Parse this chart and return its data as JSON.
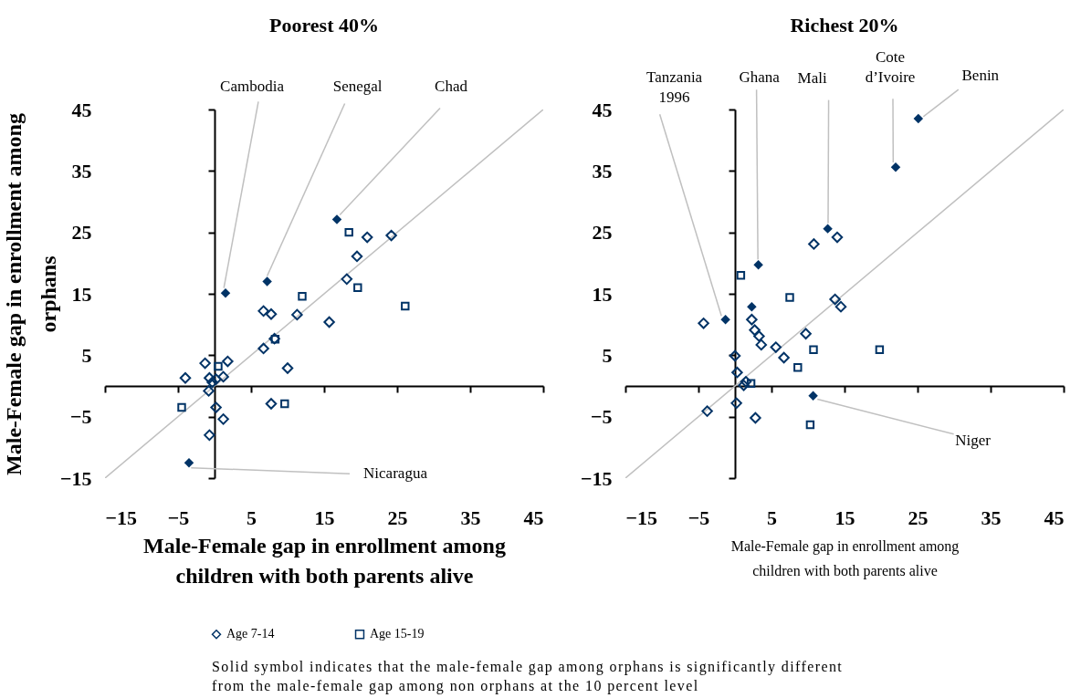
{
  "chart_data": [
    {
      "type": "scatter",
      "title": "Poorest 40%",
      "xlabel": "Male-Female gap in enrollment among children with both parents alive",
      "ylabel": "Male-Female gap in enrollment among orphans",
      "xlim": [
        -15,
        45
      ],
      "ylim": [
        -15,
        45
      ],
      "xticks": [
        -15,
        -5,
        5,
        15,
        25,
        35,
        45
      ],
      "yticks": [
        -15,
        -5,
        5,
        15,
        25,
        35,
        45
      ],
      "legend": "bottom",
      "series": [
        {
          "type": "line",
          "color": "#c0c0c0",
          "marker": "none",
          "x": [
            -15,
            45
          ],
          "values": [
            -15,
            45
          ]
        },
        {
          "type": "scatter",
          "name": "Age 7-14",
          "color": "#003366",
          "marker": "diamond",
          "x": [
            20.9,
            24.2,
            19.5,
            18.1,
            6.7,
            7.75,
            11.3,
            15.7,
            8.2,
            6.7,
            10.0,
            -1.3,
            1.8,
            -4.0,
            -0.7,
            0.2,
            1.2,
            -0.3,
            -0.8,
            0.2,
            1.2,
            -0.7,
            7.75
          ],
          "values": [
            24.2,
            24.5,
            21.1,
            17.4,
            12.2,
            11.7,
            11.6,
            10.4,
            7.7,
            6.1,
            2.9,
            3.7,
            4.0,
            1.3,
            1.3,
            1.1,
            1.5,
            0.6,
            -0.8,
            -3.5,
            -5.4,
            -8.0,
            -2.9
          ]
        },
        {
          "type": "scatter",
          "name": "Age 15-19",
          "color": "#003366",
          "marker": "square",
          "x": [
            18.4,
            19.6,
            12.0,
            26.1,
            0.5,
            -4.5,
            9.6,
            8.3
          ],
          "values": [
            25.0,
            16.0,
            14.6,
            13.0,
            3.2,
            -3.5,
            -2.9,
            7.6
          ]
        },
        {
          "type": "scatter",
          "color": "#003366",
          "marker": "diamond",
          "x": [
            16.75,
            7.2,
            1.5,
            -3.5
          ],
          "values": [
            27.1,
            17.0,
            15.1,
            -12.5
          ]
        }
      ],
      "annotations": [
        {
          "text": "Cambodia",
          "x": 1.5,
          "y": 15.1
        },
        {
          "text": "Senegal",
          "x": 7.2,
          "y": 17.0
        },
        {
          "text": "Chad",
          "x": 16.75,
          "y": 27.1
        },
        {
          "text": "Nicaragua",
          "x": -3.5,
          "y": -12.5
        }
      ]
    },
    {
      "type": "scatter",
      "title": "Richest 20%",
      "xlabel": "Male-Female gap in enrollment among children with both parents alive",
      "xlim": [
        -15,
        45
      ],
      "ylim": [
        -15,
        45
      ],
      "xticks": [
        -15,
        -5,
        5,
        15,
        25,
        35,
        45
      ],
      "yticks": [
        -15,
        -5,
        5,
        15,
        25,
        35,
        45
      ],
      "legend": "bottom",
      "series": [
        {
          "type": "line",
          "color": "#c0c0c0",
          "marker": "none",
          "x": [
            -15,
            45
          ],
          "values": [
            -15,
            45
          ]
        },
        {
          "type": "scatter",
          "name": "Age 7-14",
          "color": "#003366",
          "marker": "diamond",
          "x": [
            10.8,
            14.0,
            13.7,
            14.5,
            -4.3,
            2.3,
            2.7,
            3.3,
            3.6,
            9.7,
            5.6,
            6.7,
            0,
            0.3,
            1.5,
            1.2,
            0.2,
            -3.8,
            2.8
          ],
          "values": [
            23.1,
            24.2,
            14.1,
            12.9,
            10.2,
            10.8,
            9.1,
            8.1,
            6.7,
            8.5,
            6.3,
            4.6,
            4.9,
            2.2,
            0.7,
            0.1,
            -2.8,
            -4.1,
            -5.2
          ]
        },
        {
          "type": "scatter",
          "name": "Age 15-19",
          "color": "#003366",
          "marker": "square",
          "x": [
            0.8,
            7.5,
            10.75,
            19.8,
            8.6,
            10.3,
            2.2
          ],
          "values": [
            18.0,
            14.4,
            5.9,
            5.9,
            3.0,
            -6.3,
            0.4
          ]
        },
        {
          "type": "scatter",
          "color": "#003366",
          "marker": "diamond",
          "x": [
            25.1,
            22.0,
            12.7,
            3.2,
            2.3,
            -1.3,
            10.7
          ],
          "values": [
            43.5,
            35.6,
            25.6,
            19.7,
            12.9,
            10.8,
            -1.6
          ]
        }
      ],
      "annotations": [
        {
          "text": "Tanzania 1996",
          "x": -1.3,
          "y": 10.8
        },
        {
          "text": "Ghana",
          "x": 3.2,
          "y": 19.7
        },
        {
          "text": "Mali",
          "x": 12.7,
          "y": 25.6
        },
        {
          "text": "Cote d’Ivoire",
          "x": 22.0,
          "y": 35.6
        },
        {
          "text": "Benin",
          "x": 25.1,
          "y": 43.5
        },
        {
          "text": "Niger",
          "x": 10.7,
          "y": -1.6
        },
        "Solid symbol indicates that the male-female gap among orphans is significantly different from the male-female gap among non orphans at the 10 percent level"
      ]
    }
  ]
}
